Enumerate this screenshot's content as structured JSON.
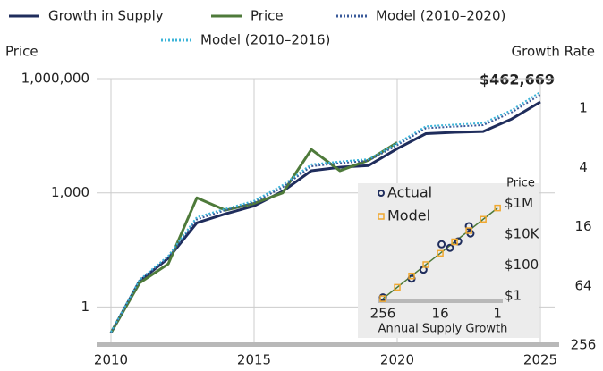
{
  "chart_data": [
    {
      "type": "line",
      "legend": "top",
      "left_axis_label": "Price",
      "right_axis_label": "Growth Rate",
      "annotation": "$462,669",
      "x": [
        2010,
        2011,
        2012,
        2013,
        2014,
        2015,
        2016,
        2017,
        2018,
        2019,
        2020,
        2021,
        2022,
        2023,
        2024,
        2025
      ],
      "xlim": [
        2009.5,
        2025.5
      ],
      "xticks": [
        2010,
        2015,
        2020,
        2025
      ],
      "ylim": [
        0.1,
        1000000
      ],
      "y_log": true,
      "yticks": [
        1,
        {
          "value": 1000,
          "label": "1,000"
        },
        {
          "value": 1000000,
          "label": "1,000,000"
        }
      ],
      "y2lim": [
        256,
        0.5
      ],
      "y2_log": true,
      "y2ticks": [
        1,
        4,
        16,
        64,
        256
      ],
      "grid": true,
      "series": [
        {
          "name": "Growth in Supply",
          "color": "#1f2d5c",
          "dash": "solid",
          "values": [
            0.21,
            4.8,
            19,
            163,
            280,
            455,
            1100,
            3800,
            4700,
            5200,
            14500,
            36000,
            39000,
            41000,
            87000,
            245000
          ]
        },
        {
          "name": "Price",
          "color": "#4e7a3a",
          "dash": "solid",
          "values": [
            0.21,
            4.3,
            13.5,
            740,
            350,
            530,
            1000,
            13800,
            3800,
            7200,
            21000,
            null,
            null,
            null,
            null,
            null
          ]
        },
        {
          "name": "Model (2010–2020)",
          "color": "#3a5a9a",
          "dash": "dotted",
          "values": [
            0.21,
            5,
            20,
            200,
            350,
            560,
            1400,
            5000,
            6000,
            7000,
            18000,
            50000,
            55000,
            60000,
            130000,
            380000
          ]
        },
        {
          "name": "Model (2010–2016)",
          "color": "#3cb4d8",
          "dash": "dotted",
          "values": [
            0.22,
            5.2,
            22,
            230,
            380,
            620,
            1600,
            5600,
            6600,
            7700,
            20000,
            56000,
            62000,
            68000,
            150000,
            450000
          ]
        }
      ]
    },
    {
      "type": "scatter",
      "y_axis_label": "Price",
      "x_axis_label": "Annual Supply Growth",
      "xlim": [
        860,
        0.15
      ],
      "x_log": true,
      "xticks": [
        256,
        16,
        1
      ],
      "ylim": [
        0.3,
        20000000
      ],
      "y_log": true,
      "yticks": [
        {
          "value": 1,
          "label": "$1"
        },
        {
          "value": 100,
          "label": "$100"
        },
        {
          "value": 10000,
          "label": "$10K"
        },
        {
          "value": 1000000,
          "label": "$1M"
        }
      ],
      "line_color": "#4e7a3a",
      "series": [
        {
          "name": "Actual",
          "color": "#1f2d5c",
          "x": [
            256,
            64,
            36,
            15,
            10,
            6.7,
            4,
            3.7
          ],
          "values": [
            0.8,
            13,
            50,
            2200,
            1300,
            3400,
            33000,
            11000
          ]
        },
        {
          "name": "Model",
          "color": "#f0a830",
          "x": [
            256,
            128,
            64,
            32,
            16,
            8,
            4,
            2,
            1
          ],
          "values": [
            0.66,
            3.6,
            19.5,
            107,
            580,
            3200,
            17000,
            93000,
            500000
          ]
        }
      ]
    }
  ]
}
